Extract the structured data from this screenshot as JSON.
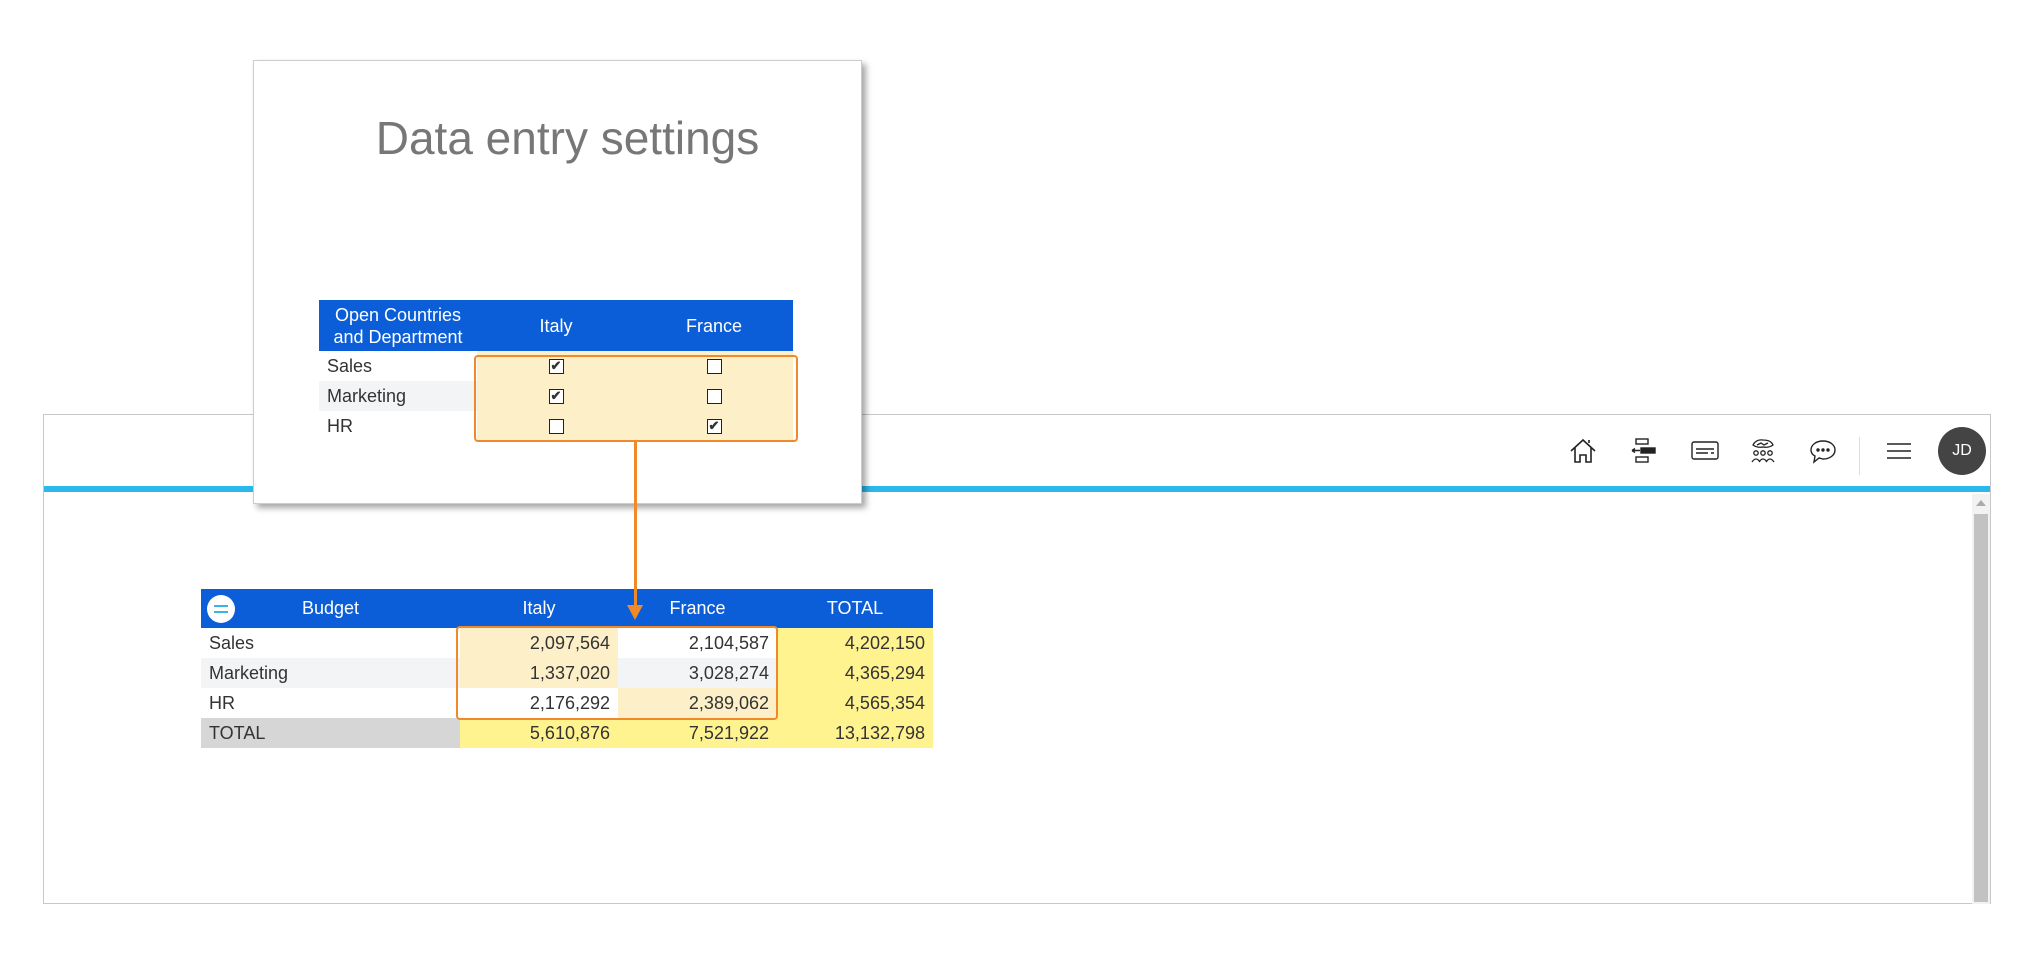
{
  "popup": {
    "title": "Data entry settings",
    "table": {
      "headers": [
        "Open Countries\nand Department",
        "Italy",
        "France"
      ],
      "header_line1": "Open Countries",
      "header_line2": "and Department",
      "rows": [
        {
          "label": "Sales",
          "italy": true,
          "france": false
        },
        {
          "label": "Marketing",
          "italy": true,
          "france": false
        },
        {
          "label": "HR",
          "italy": false,
          "france": true
        }
      ]
    }
  },
  "toolbar": {
    "icons": [
      "home-icon",
      "hierarchy-icon",
      "card-icon",
      "team-icon",
      "chat-icon",
      "menu-icon"
    ],
    "avatar": "JD"
  },
  "budget": {
    "headers": [
      "Budget",
      "Italy",
      "France",
      "TOTAL"
    ],
    "rows": [
      {
        "label": "Sales",
        "values": [
          "2,097,564",
          "2,104,587",
          "4,202,150"
        ]
      },
      {
        "label": "Marketing",
        "values": [
          "1,337,020",
          "3,028,274",
          "4,365,294"
        ]
      },
      {
        "label": "HR",
        "values": [
          "2,176,292",
          "2,389,062",
          "4,565,354"
        ]
      },
      {
        "label": "TOTAL",
        "values": [
          "5,610,876",
          "7,521,922",
          "13,132,798"
        ]
      }
    ]
  },
  "colors": {
    "header": "#0b5ed7",
    "accent_line": "#2bb8ec",
    "highlight": "#f0892a",
    "total": "#fff38f",
    "open_cell": "#fdf0c8"
  }
}
